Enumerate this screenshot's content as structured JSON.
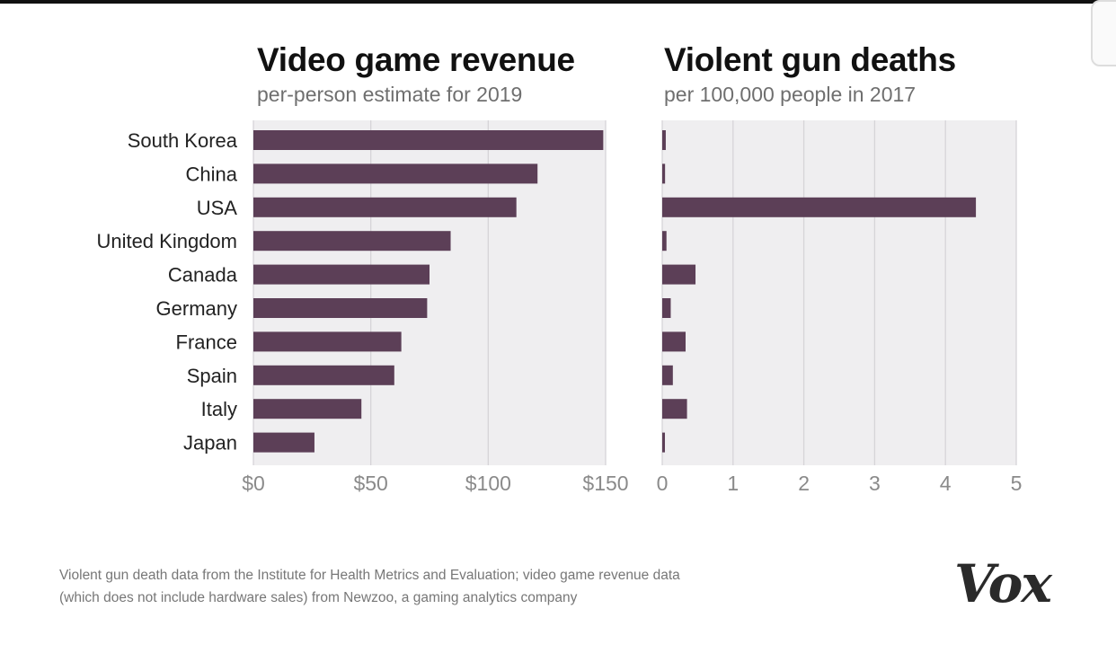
{
  "titles": {
    "left": "Video game revenue",
    "left_sub": "per-person estimate for 2019",
    "right": "Violent gun deaths",
    "right_sub": "per 100,000 people in 2017"
  },
  "footer": {
    "source_line1": "Violent gun death data from the Institute for Health Metrics and Evaluation; video game revenue data",
    "source_line2": "(which does not include hardware sales) from Newzoo, a gaming analytics company"
  },
  "logo": "Vox",
  "colors": {
    "bar": "#5c3f57",
    "plot_bg": "#efeef0",
    "grid": "#d6d4d8",
    "label": "#222222",
    "tick": "#8a8a8a"
  },
  "chart_data": [
    {
      "type": "bar",
      "orientation": "horizontal",
      "title": "Video game revenue",
      "subtitle": "per-person estimate for 2019",
      "categories": [
        "South Korea",
        "China",
        "USA",
        "United Kingdom",
        "Canada",
        "Germany",
        "France",
        "Spain",
        "Italy",
        "Japan"
      ],
      "values": [
        149,
        121,
        112,
        84,
        75,
        74,
        63,
        60,
        46,
        26
      ],
      "xlim": [
        0,
        150
      ],
      "xticks": [
        0,
        50,
        100,
        150
      ],
      "xtick_labels": [
        "$0",
        "$50",
        "$100",
        "$150"
      ],
      "grid": true,
      "legend": "none"
    },
    {
      "type": "bar",
      "orientation": "horizontal",
      "title": "Violent gun deaths",
      "subtitle": "per 100,000 people in 2017",
      "categories": [
        "South Korea",
        "China",
        "USA",
        "United Kingdom",
        "Canada",
        "Germany",
        "France",
        "Spain",
        "Italy",
        "Japan"
      ],
      "values": [
        0.05,
        0.04,
        4.43,
        0.06,
        0.47,
        0.12,
        0.33,
        0.15,
        0.35,
        0.03
      ],
      "xlim": [
        0,
        5
      ],
      "xticks": [
        0,
        1,
        2,
        3,
        4,
        5
      ],
      "xtick_labels": [
        "0",
        "1",
        "2",
        "3",
        "4",
        "5"
      ],
      "grid": true,
      "legend": "none"
    }
  ]
}
